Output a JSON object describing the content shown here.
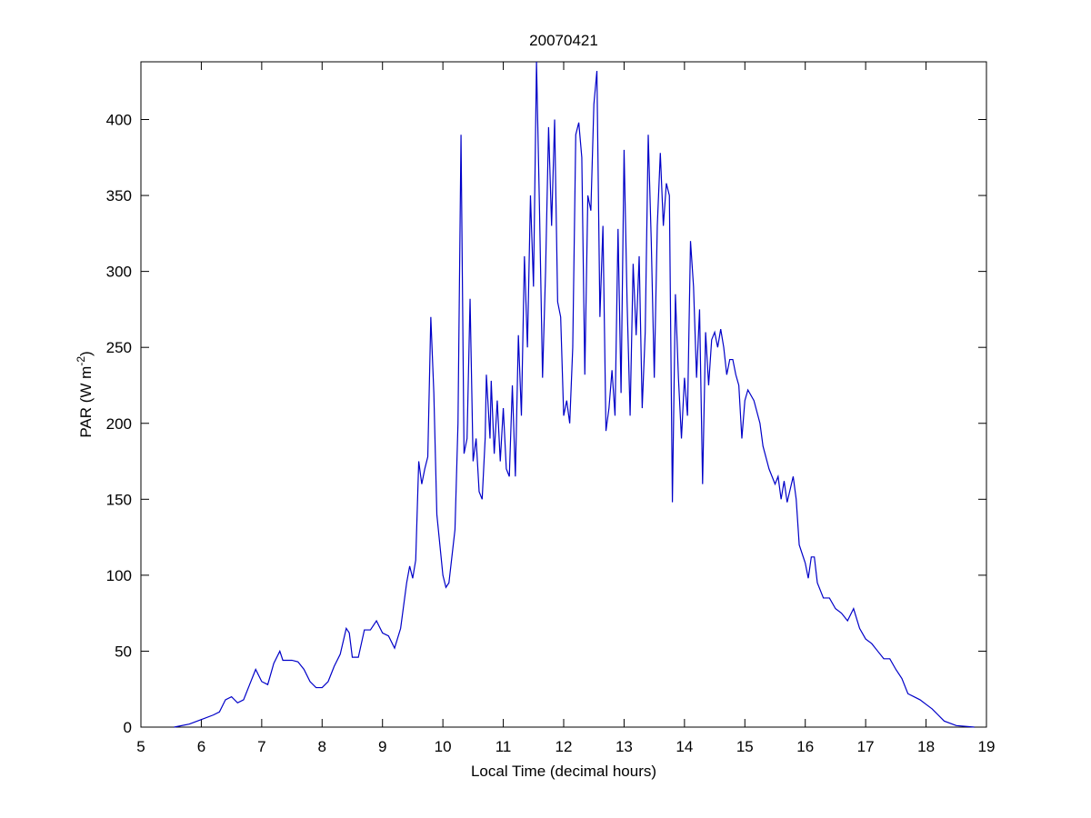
{
  "chart_data": {
    "type": "line",
    "title": "20070421",
    "xlabel": "Local Time (decimal hours)",
    "ylabel": [
      "PAR (W m",
      "-2",
      ")"
    ],
    "x": [
      5.55,
      5.8,
      6.0,
      6.2,
      6.3,
      6.4,
      6.5,
      6.6,
      6.7,
      6.8,
      6.9,
      7.0,
      7.1,
      7.2,
      7.3,
      7.35,
      7.5,
      7.6,
      7.7,
      7.8,
      7.9,
      8.0,
      8.1,
      8.2,
      8.3,
      8.4,
      8.45,
      8.5,
      8.6,
      8.7,
      8.8,
      8.9,
      9.0,
      9.1,
      9.2,
      9.3,
      9.4,
      9.45,
      9.5,
      9.55,
      9.6,
      9.65,
      9.7,
      9.75,
      9.8,
      9.85,
      9.9,
      10.0,
      10.05,
      10.1,
      10.2,
      10.25,
      10.3,
      10.35,
      10.4,
      10.45,
      10.5,
      10.55,
      10.6,
      10.65,
      10.7,
      10.72,
      10.78,
      10.8,
      10.85,
      10.9,
      10.95,
      11.0,
      11.05,
      11.1,
      11.15,
      11.2,
      11.25,
      11.3,
      11.35,
      11.4,
      11.45,
      11.5,
      11.55,
      11.6,
      11.65,
      11.7,
      11.75,
      11.8,
      11.85,
      11.9,
      11.95,
      12.0,
      12.05,
      12.1,
      12.15,
      12.2,
      12.25,
      12.3,
      12.35,
      12.4,
      12.45,
      12.5,
      12.55,
      12.6,
      12.65,
      12.7,
      12.75,
      12.8,
      12.85,
      12.9,
      12.95,
      13.0,
      13.05,
      13.1,
      13.15,
      13.2,
      13.25,
      13.3,
      13.35,
      13.4,
      13.45,
      13.5,
      13.55,
      13.6,
      13.65,
      13.7,
      13.75,
      13.8,
      13.85,
      13.9,
      13.95,
      14.0,
      14.05,
      14.1,
      14.15,
      14.2,
      14.25,
      14.3,
      14.35,
      14.4,
      14.45,
      14.5,
      14.55,
      14.6,
      14.65,
      14.7,
      14.75,
      14.8,
      14.85,
      14.9,
      14.95,
      15.0,
      15.05,
      15.15,
      15.25,
      15.3,
      15.4,
      15.5,
      15.55,
      15.6,
      15.65,
      15.7,
      15.8,
      15.85,
      15.9,
      16.0,
      16.05,
      16.1,
      16.15,
      16.2,
      16.3,
      16.4,
      16.5,
      16.6,
      16.7,
      16.8,
      16.9,
      17.0,
      17.1,
      17.2,
      17.3,
      17.4,
      17.5,
      17.6,
      17.7,
      17.8,
      17.9,
      18.0,
      18.1,
      18.2,
      18.3,
      18.5,
      18.8
    ],
    "series": [
      {
        "color": "#0000c8",
        "values": [
          0,
          2,
          5,
          8,
          10,
          18,
          20,
          16,
          18,
          28,
          38,
          30,
          28,
          42,
          50,
          44,
          44,
          43,
          38,
          30,
          26,
          26,
          30,
          40,
          48,
          65,
          62,
          46,
          46,
          64,
          64,
          70,
          62,
          60,
          52,
          65,
          95,
          106,
          98,
          110,
          175,
          160,
          170,
          178,
          270,
          220,
          140,
          100,
          92,
          95,
          130,
          200,
          390,
          180,
          190,
          282,
          175,
          190,
          155,
          150,
          190,
          232,
          190,
          228,
          180,
          215,
          175,
          210,
          170,
          165,
          225,
          165,
          258,
          205,
          310,
          250,
          350,
          290,
          438,
          340,
          230,
          300,
          395,
          330,
          400,
          280,
          270,
          205,
          215,
          200,
          250,
          390,
          398,
          375,
          232,
          350,
          340,
          410,
          432,
          270,
          330,
          195,
          210,
          235,
          205,
          328,
          220,
          380,
          280,
          205,
          305,
          258,
          310,
          210,
          260,
          390,
          320,
          230,
          330,
          378,
          330,
          358,
          350,
          148,
          285,
          230,
          190,
          230,
          205,
          320,
          290,
          230,
          275,
          160,
          260,
          225,
          255,
          260,
          250,
          262,
          250,
          232,
          242,
          242,
          232,
          225,
          190,
          215,
          222,
          215,
          200,
          185,
          170,
          160,
          165,
          150,
          162,
          148,
          165,
          150,
          120,
          108,
          98,
          112,
          112,
          95,
          85,
          85,
          78,
          75,
          70,
          78,
          65,
          58,
          55,
          50,
          45,
          45,
          38,
          32,
          22,
          20,
          18,
          15,
          12,
          8,
          4,
          1,
          0
        ]
      }
    ],
    "xlim": [
      5,
      19
    ],
    "ylim": [
      0,
      438
    ],
    "xticks": [
      5,
      6,
      7,
      8,
      9,
      10,
      11,
      12,
      13,
      14,
      15,
      16,
      17,
      18,
      19
    ],
    "yticks": [
      0,
      50,
      100,
      150,
      200,
      250,
      300,
      350,
      400
    ]
  }
}
